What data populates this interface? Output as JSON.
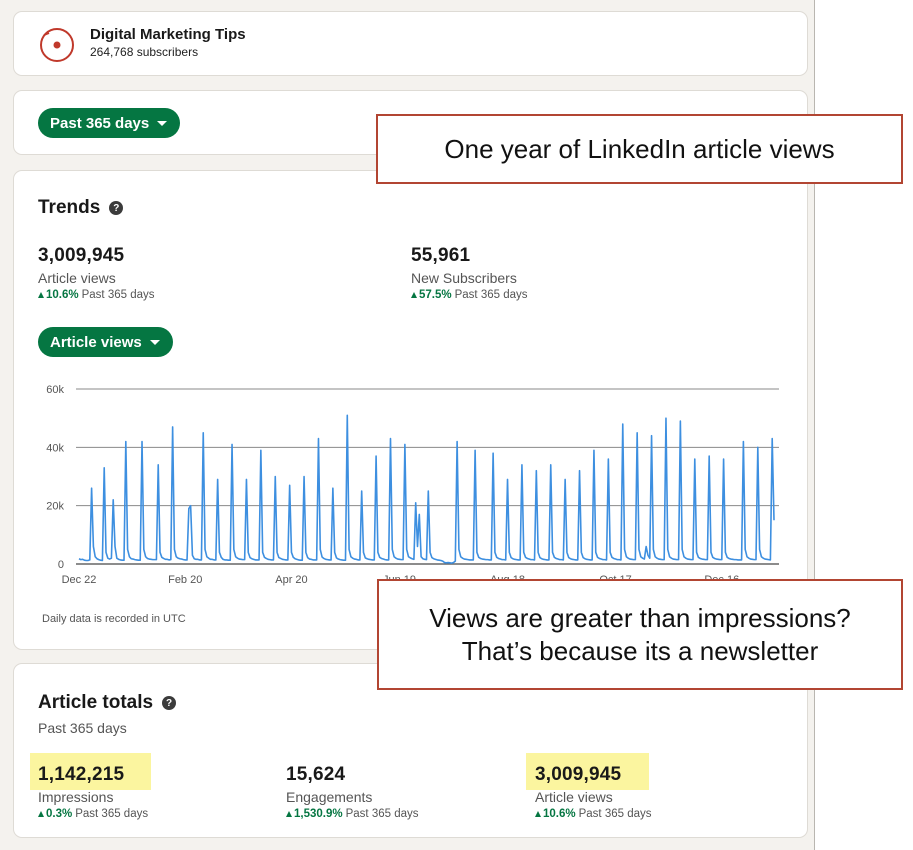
{
  "newsletter": {
    "title": "Digital Marketing Tips",
    "subscribers": "264,768 subscribers"
  },
  "filter": {
    "label": "Past 365 days"
  },
  "trends": {
    "title": "Trends",
    "help_glyph": "?",
    "metrics": [
      {
        "value": "3,009,945",
        "label": "Article views",
        "change": "10.6%",
        "period": "Past 365 days"
      },
      {
        "value": "55,961",
        "label": "New Subscribers",
        "change": "57.5%",
        "period": "Past 365 days"
      }
    ],
    "selector_label": "Article views",
    "note": "Daily data is recorded in UTC"
  },
  "chart_data": {
    "type": "line",
    "x_ticks": [
      "Dec 22",
      "Feb 20",
      "Apr 20",
      "Jun 19",
      "Aug 18",
      "Oct 17",
      "Dec 16"
    ],
    "y_ticks": [
      "0",
      "20k",
      "40k",
      "60k"
    ],
    "ylim": [
      0,
      60000
    ],
    "x_domain": [
      "Dec 22",
      "Dec 16"
    ],
    "line_color": "#3d8fe0",
    "grid": true,
    "series": [
      {
        "values": [
          1800,
          1500,
          1600,
          1300,
          1200,
          1200,
          1400,
          26000,
          6000,
          2500,
          1800,
          1500,
          1300,
          1200,
          33000,
          4000,
          2000,
          1700,
          2000,
          22000,
          6000,
          2000,
          1600,
          1400,
          1300,
          1300,
          42000,
          5000,
          2500,
          1800,
          1700,
          1500,
          1400,
          1300,
          1300,
          42000,
          5000,
          2500,
          1900,
          1700,
          1600,
          1500,
          1500,
          1500,
          34000,
          4000,
          2300,
          1900,
          1600,
          1600,
          1400,
          1500,
          47000,
          5000,
          2500,
          2000,
          1800,
          1700,
          1500,
          1400,
          1400,
          19000,
          20000,
          3000,
          1800,
          1600,
          1600,
          1400,
          1400,
          45000,
          5000,
          2500,
          2000,
          1600,
          1600,
          1400,
          1400,
          29000,
          4000,
          2300,
          1600,
          1400,
          1400,
          1300,
          1300,
          41000,
          5000,
          2500,
          2000,
          1700,
          1600,
          1500,
          1500,
          29000,
          4000,
          2200,
          1800,
          1600,
          1400,
          1400,
          1400,
          39000,
          4000,
          2300,
          1900,
          1600,
          1500,
          1400,
          1400,
          30000,
          4000,
          2200,
          1900,
          1600,
          1500,
          1400,
          1400,
          27000,
          4000,
          2300,
          1800,
          1600,
          1400,
          1300,
          1300,
          30000,
          4000,
          2200,
          1700,
          1600,
          1400,
          1400,
          1400,
          43000,
          5000,
          2400,
          1900,
          1600,
          1500,
          1400,
          1400,
          26000,
          4000,
          2100,
          1700,
          1500,
          1400,
          1300,
          1300,
          51000,
          5000,
          2500,
          2000,
          1700,
          1600,
          1400,
          1400,
          25000,
          4000,
          2100,
          1800,
          1600,
          1500,
          1400,
          1400,
          37000,
          4000,
          2300,
          1900,
          1700,
          1500,
          1400,
          1400,
          43000,
          5000,
          2500,
          2000,
          1700,
          1600,
          1500,
          1500,
          41000,
          5000,
          2500,
          2100,
          1800,
          1600,
          21000,
          6000,
          17000,
          2500,
          1800,
          1600,
          1500,
          25000,
          4000,
          2200,
          1800,
          1600,
          1400,
          1300,
          1200,
          1000,
          500,
          400,
          500,
          400,
          300,
          500,
          1000,
          42000,
          5000,
          2500,
          2000,
          1700,
          1600,
          1500,
          1400,
          1400,
          1400,
          39000,
          4000,
          2300,
          1900,
          1700,
          1600,
          1500,
          1500,
          1400,
          1400,
          38000,
          4000,
          2300,
          1900,
          1700,
          1500,
          1500,
          1400,
          29000,
          4000,
          2200,
          1800,
          1600,
          1500,
          1400,
          1400,
          34000,
          4000,
          2300,
          1900,
          1700,
          1500,
          1500,
          1400,
          32000,
          4000,
          2200,
          1800,
          1600,
          1500,
          1400,
          1400,
          34000,
          4000,
          2300,
          1900,
          1700,
          1500,
          1500,
          1400,
          29000,
          4000,
          2200,
          1800,
          1600,
          1500,
          1400,
          1400,
          32000,
          4000,
          2200,
          1800,
          1600,
          1500,
          1400,
          1400,
          39000,
          4000,
          2300,
          1900,
          1700,
          1500,
          1500,
          1400,
          36000,
          4000,
          2300,
          1900,
          1700,
          1500,
          1500,
          1400,
          48000,
          5000,
          2500,
          2000,
          1700,
          1600,
          1500,
          1500,
          45000,
          5000,
          2500,
          2000,
          1700,
          6000,
          3000,
          2000,
          44000,
          5000,
          2500,
          2000,
          1700,
          1600,
          1500,
          1500,
          50000,
          5000,
          2500,
          2000,
          1700,
          1600,
          1500,
          1500,
          49000,
          5000,
          2500,
          2000,
          1700,
          1600,
          1500,
          1500,
          36000,
          4000,
          2300,
          1900,
          1700,
          1600,
          1500,
          1500,
          37000,
          4000,
          2300,
          1900,
          1700,
          1600,
          1500,
          1500,
          36000,
          4000,
          2300,
          1900,
          1700,
          1600,
          1500,
          1500,
          1400,
          1400,
          1400,
          42000,
          5000,
          2500,
          2000,
          1700,
          1600,
          1500,
          1500,
          40000,
          5000,
          2500,
          2000,
          1700,
          1600,
          1500,
          1400,
          43000,
          15000
        ]
      }
    ]
  },
  "totals": {
    "title": "Article totals",
    "subtitle": "Past 365 days",
    "highlight_color": "#fbf59f",
    "items": [
      {
        "value": "1,142,215",
        "label": "Impressions",
        "change": "0.3%",
        "period": "Past 365 days",
        "highlighted": true
      },
      {
        "value": "15,624",
        "label": "Engagements",
        "change": "1,530.9%",
        "period": "Past 365 days",
        "highlighted": false
      },
      {
        "value": "3,009,945",
        "label": "Article views",
        "change": "10.6%",
        "period": "Past 365 days",
        "highlighted": true
      }
    ]
  },
  "annotations": {
    "callout_top": "One year of LinkedIn article views",
    "callout_bottom_line1": "Views are greater than impressions?",
    "callout_bottom_line2": "That’s because its a newsletter",
    "border_color": "#b24532"
  },
  "colors": {
    "brand_green": "#057642",
    "logo_red": "#c0392b"
  }
}
